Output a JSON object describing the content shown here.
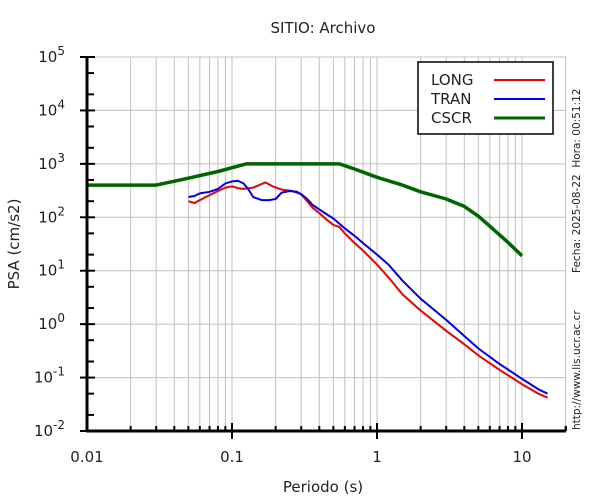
{
  "chart_data": {
    "type": "line",
    "title": "SITIO: Archivo",
    "xlabel": "Periodo (s)",
    "ylabel": "PSA (cm/s2)",
    "xscale": "log",
    "yscale": "log",
    "xlim": [
      0.01,
      20
    ],
    "ylim": [
      0.01,
      100000
    ],
    "grid": true,
    "x_ticks": [
      {
        "value": 0.01,
        "label": "0.01"
      },
      {
        "value": 0.1,
        "label": "0.1"
      },
      {
        "value": 1,
        "label": "1"
      },
      {
        "value": 10,
        "label": "10"
      }
    ],
    "y_ticks": [
      {
        "value": 100000,
        "base": "10",
        "exp": "5"
      },
      {
        "value": 10000,
        "base": "10",
        "exp": "4"
      },
      {
        "value": 1000,
        "base": "10",
        "exp": "3"
      },
      {
        "value": 100,
        "base": "10",
        "exp": "2"
      },
      {
        "value": 10,
        "base": "10",
        "exp": "1"
      },
      {
        "value": 1,
        "base": "10",
        "exp": "0"
      },
      {
        "value": 0.1,
        "base": "10",
        "exp": "-1"
      },
      {
        "value": 0.01,
        "base": "10",
        "exp": "-2"
      }
    ],
    "legend_position": "top-right",
    "series": [
      {
        "name": "LONG",
        "color": "#ee0000",
        "x": [
          0.05,
          0.055,
          0.06,
          0.07,
          0.08,
          0.09,
          0.1,
          0.11,
          0.12,
          0.14,
          0.16,
          0.17,
          0.19,
          0.22,
          0.26,
          0.3,
          0.33,
          0.36,
          0.4,
          0.45,
          0.5,
          0.55,
          0.6,
          0.7,
          0.8,
          1.0,
          1.2,
          1.5,
          2.0,
          3.0,
          4.0,
          5.0,
          7.0,
          10.0,
          13.0,
          15.0
        ],
        "y": [
          200,
          185,
          210,
          260,
          310,
          360,
          380,
          350,
          340,
          360,
          420,
          450,
          380,
          330,
          310,
          270,
          200,
          150,
          120,
          90,
          72,
          66,
          50,
          33,
          24,
          13,
          7.5,
          3.6,
          1.8,
          0.75,
          0.42,
          0.26,
          0.14,
          0.075,
          0.05,
          0.042
        ]
      },
      {
        "name": "TRAN",
        "color": "#0000ee",
        "x": [
          0.05,
          0.055,
          0.06,
          0.07,
          0.08,
          0.09,
          0.1,
          0.11,
          0.12,
          0.13,
          0.14,
          0.16,
          0.18,
          0.2,
          0.22,
          0.25,
          0.28,
          0.3,
          0.33,
          0.36,
          0.4,
          0.5,
          0.6,
          0.7,
          0.8,
          1.0,
          1.2,
          1.5,
          2.0,
          3.0,
          4.0,
          5.0,
          7.0,
          10.0,
          13.0,
          15.0
        ],
        "y": [
          240,
          250,
          280,
          300,
          340,
          430,
          470,
          480,
          430,
          330,
          240,
          210,
          210,
          220,
          290,
          310,
          300,
          270,
          220,
          170,
          140,
          95,
          62,
          45,
          33,
          20,
          13,
          6.5,
          3.0,
          1.2,
          0.6,
          0.35,
          0.18,
          0.095,
          0.06,
          0.05
        ]
      },
      {
        "name": "CSCR",
        "color": "#006400",
        "x": [
          0.01,
          0.03,
          0.05,
          0.08,
          0.125,
          0.2,
          0.3,
          0.55,
          0.7,
          1.0,
          1.5,
          2.0,
          3.0,
          4.0,
          5.0,
          6.0,
          8.0,
          10.0
        ],
        "y": [
          400,
          400,
          540,
          720,
          1000,
          1000,
          1000,
          1000,
          800,
          560,
          400,
          300,
          220,
          160,
          105,
          68,
          34,
          19
        ]
      }
    ]
  },
  "side_text": {
    "datetime": "Fecha: 2025-08-22  Hora: 00:51:12",
    "url": "http://www.lis.ucr.ac.cr"
  }
}
